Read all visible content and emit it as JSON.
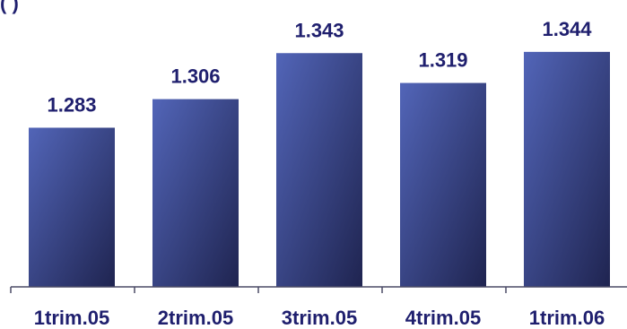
{
  "top_label_fragment": "(        )",
  "chart_data": {
    "type": "bar",
    "title": "",
    "xlabel": "",
    "ylabel": "",
    "categories": [
      "1trim.05",
      "2trim.05",
      "3trim.05",
      "4trim.05",
      "1trim.06"
    ],
    "values": [
      1283,
      1306,
      1343,
      1319,
      1344
    ],
    "value_labels": [
      "1.283",
      "1.306",
      "1.343",
      "1.319",
      "1.344"
    ],
    "ylim": [
      1155,
      1354
    ],
    "grid": false,
    "legend": "none",
    "colors": {
      "bar_light": "#5265b8",
      "bar_dark": "#1f2450",
      "label_text": "#1f1f6e",
      "axis": "#4a4a66"
    }
  }
}
